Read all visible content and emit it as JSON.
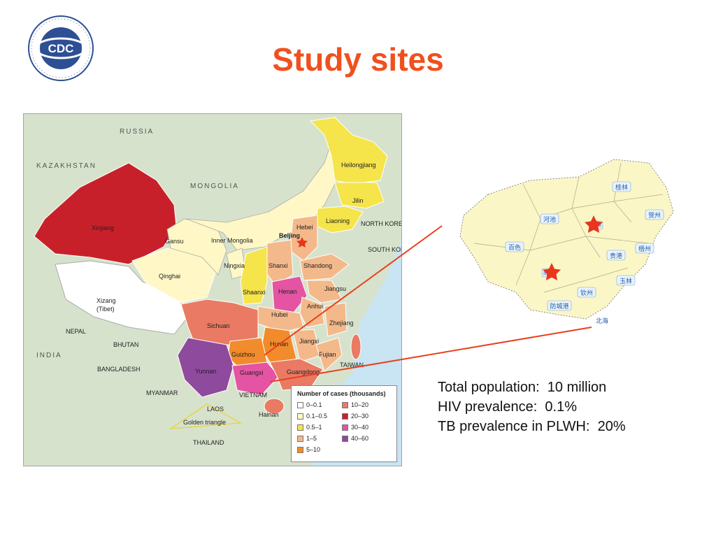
{
  "slide": {
    "title": "Study sites",
    "stats": [
      "Total population:  10 million",
      "HIV prevalence:  0.1%",
      "TB prevalence in PLWH:  20%"
    ]
  },
  "logo": {
    "text": "CDC",
    "ring_text": "CHINESE CENTER FOR DISEASE CONTROL AND PREVENTION"
  },
  "china_map": {
    "countries": {
      "russia": "RUSSIA",
      "kazakhstan": "KAZAKHSTAN",
      "mongolia": "MONGOLIA",
      "north_korea": "NORTH KOREA",
      "south_korea": "SOUTH KOREA",
      "nepal": "NEPAL",
      "bhutan": "BHUTAN",
      "india": "INDIA",
      "bangladesh": "BANGLADESH",
      "myanmar": "MYANMAR",
      "laos": "LAOS",
      "vietnam": "VIETNAM",
      "thailand": "THAILAND",
      "taiwan": "TAIWAN"
    },
    "provinces": {
      "xinjiang": "Xinjiang",
      "xizang": "Xizang",
      "xizang_sub": "(Tibet)",
      "qinghai": "Qinghai",
      "gansu": "Gansu",
      "inner_mongolia": "Inner Mongolia",
      "ningxia": "Ningxia",
      "heilongjiang": "Heilongjiang",
      "jilin": "Jilin",
      "liaoning": "Liaoning",
      "beijing": "Beijing",
      "hebei": "Hebei",
      "shanxi": "Shanxi",
      "shandong": "Shandong",
      "shaanxi": "Shaanxi",
      "henan": "Henan",
      "jiangsu": "Jiangsu",
      "anhui": "Anhui",
      "hubei": "Hubei",
      "zhejiang": "Zhejiang",
      "sichuan": "Sichuan",
      "hunan": "Hunan",
      "jiangxi": "Jiangxi",
      "guizhou": "Guizhou",
      "fujian": "Fujian",
      "yunnan": "Yunnan",
      "guangxi": "Guangxi",
      "guangdong": "Guangdong",
      "hainan": "Hainan",
      "golden_triangle": "Golden triangle"
    },
    "legend": {
      "title": "Number of cases (thousands)",
      "items": [
        {
          "label": "0–0.1",
          "color": "#ffffff"
        },
        {
          "label": "0.1–0.5",
          "color": "#fff8c6"
        },
        {
          "label": "0.5–1",
          "color": "#f5e44a"
        },
        {
          "label": "1–5",
          "color": "#f4b98a"
        },
        {
          "label": "5–10",
          "color": "#f28b2b"
        },
        {
          "label": "10–20",
          "color": "#ea7a63"
        },
        {
          "label": "20–30",
          "color": "#c8202a"
        },
        {
          "label": "30–40",
          "color": "#e454a2"
        },
        {
          "label": "40–60",
          "color": "#8e4a9c"
        }
      ]
    }
  },
  "guangxi_map": {
    "cities": {
      "guilin": "桂林",
      "hechi": "河池",
      "hezhou": "贺州",
      "liuzhou": "柳州",
      "baise": "百色",
      "wuzhou": "梧州",
      "guigang": "贵港",
      "nanning": "南宁",
      "yulin": "玉林",
      "qinzhou": "钦州",
      "fangchenggang": "防城港",
      "beihai": "北海"
    }
  },
  "colors": {
    "title": "#f0501e",
    "star": "#e8351c",
    "connector": "#e8401c"
  }
}
